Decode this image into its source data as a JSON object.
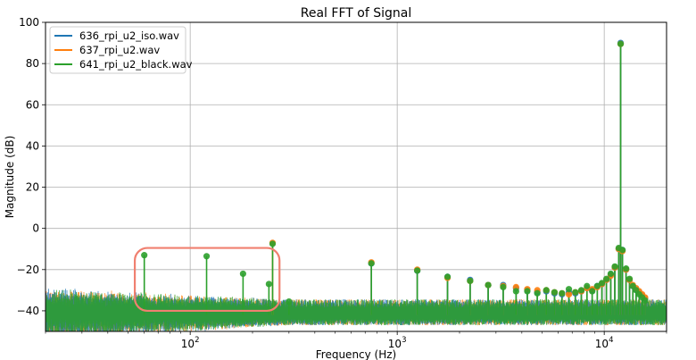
{
  "chart_data": {
    "type": "line",
    "title": "Real FFT of Signal",
    "xlabel": "Frequency (Hz)",
    "ylabel": "Magnitude (dB)",
    "xscale": "log",
    "xlim": [
      20,
      20000
    ],
    "ylim": [
      -50,
      100
    ],
    "xticks": [
      {
        "value": 100,
        "base": "10",
        "exp": "2"
      },
      {
        "value": 1000,
        "base": "10",
        "exp": "3"
      },
      {
        "value": 10000,
        "base": "10",
        "exp": "4"
      }
    ],
    "yticks": [
      -40,
      -20,
      0,
      20,
      40,
      60,
      80,
      100
    ],
    "grid": true,
    "legend_position": "top-left",
    "noise_floor": {
      "mean": -40,
      "spread": 4,
      "low_freq_extra": 6
    },
    "series": [
      {
        "name": "636_rpi_u2_iso.wav",
        "color": "#1f77b4",
        "peaks": [
          {
            "x": 750,
            "y": -17
          },
          {
            "x": 1250,
            "y": -20.5
          },
          {
            "x": 1750,
            "y": -23.5
          },
          {
            "x": 2250,
            "y": -25
          },
          {
            "x": 2750,
            "y": -27.5
          },
          {
            "x": 3250,
            "y": -27.5
          },
          {
            "x": 3750,
            "y": -29
          },
          {
            "x": 4250,
            "y": -30
          },
          {
            "x": 4750,
            "y": -31
          },
          {
            "x": 5250,
            "y": -30.5
          },
          {
            "x": 5750,
            "y": -31.5
          },
          {
            "x": 6250,
            "y": -32
          },
          {
            "x": 6750,
            "y": -31
          },
          {
            "x": 7250,
            "y": -31.5
          },
          {
            "x": 7750,
            "y": -30.5
          },
          {
            "x": 8250,
            "y": -29
          },
          {
            "x": 8750,
            "y": -30
          },
          {
            "x": 9250,
            "y": -28
          },
          {
            "x": 9750,
            "y": -27
          },
          {
            "x": 10250,
            "y": -25
          },
          {
            "x": 10750,
            "y": -22.5
          },
          {
            "x": 11250,
            "y": -19
          },
          {
            "x": 11750,
            "y": -10
          },
          {
            "x": 12000,
            "y": 90
          },
          {
            "x": 12250,
            "y": -10.5
          },
          {
            "x": 12750,
            "y": -20
          },
          {
            "x": 13250,
            "y": -25
          },
          {
            "x": 13750,
            "y": -28
          },
          {
            "x": 14250,
            "y": -29.5
          },
          {
            "x": 14750,
            "y": -31
          },
          {
            "x": 15250,
            "y": -32.5
          },
          {
            "x": 15750,
            "y": -34
          }
        ]
      },
      {
        "name": "637_rpi_u2.wav",
        "color": "#ff7f0e",
        "peaks": [
          {
            "x": 250,
            "y": -7
          },
          {
            "x": 750,
            "y": -16.5
          },
          {
            "x": 1250,
            "y": -20
          },
          {
            "x": 1750,
            "y": -24
          },
          {
            "x": 2250,
            "y": -25.5
          },
          {
            "x": 2750,
            "y": -27.5
          },
          {
            "x": 3250,
            "y": -28
          },
          {
            "x": 3750,
            "y": -28.5
          },
          {
            "x": 4250,
            "y": -29.5
          },
          {
            "x": 4750,
            "y": -30
          },
          {
            "x": 5250,
            "y": -30
          },
          {
            "x": 5750,
            "y": -31
          },
          {
            "x": 6250,
            "y": -31.5
          },
          {
            "x": 6750,
            "y": -32
          },
          {
            "x": 7250,
            "y": -31
          },
          {
            "x": 7750,
            "y": -30.5
          },
          {
            "x": 8250,
            "y": -29
          },
          {
            "x": 8750,
            "y": -29.5
          },
          {
            "x": 9250,
            "y": -28.5
          },
          {
            "x": 9750,
            "y": -27
          },
          {
            "x": 10250,
            "y": -25
          },
          {
            "x": 10750,
            "y": -23
          },
          {
            "x": 11250,
            "y": -19
          },
          {
            "x": 11750,
            "y": -10
          },
          {
            "x": 12000,
            "y": 89.5
          },
          {
            "x": 12250,
            "y": -11
          },
          {
            "x": 12750,
            "y": -20
          },
          {
            "x": 13250,
            "y": -25
          },
          {
            "x": 13750,
            "y": -27.5
          },
          {
            "x": 14250,
            "y": -29
          },
          {
            "x": 14750,
            "y": -30.5
          },
          {
            "x": 15250,
            "y": -32
          },
          {
            "x": 15750,
            "y": -33.5
          }
        ]
      },
      {
        "name": "641_rpi_u2_black.wav",
        "color": "#2ca02c",
        "peaks": [
          {
            "x": 60,
            "y": -13
          },
          {
            "x": 120,
            "y": -13.5
          },
          {
            "x": 180,
            "y": -22
          },
          {
            "x": 240,
            "y": -27
          },
          {
            "x": 250,
            "y": -7.5
          },
          {
            "x": 300,
            "y": -35.5
          },
          {
            "x": 750,
            "y": -17
          },
          {
            "x": 1250,
            "y": -20.5
          },
          {
            "x": 1750,
            "y": -23.5
          },
          {
            "x": 2250,
            "y": -25.5
          },
          {
            "x": 2750,
            "y": -27.5
          },
          {
            "x": 3250,
            "y": -28.5
          },
          {
            "x": 3750,
            "y": -30.5
          },
          {
            "x": 4250,
            "y": -30.5
          },
          {
            "x": 4750,
            "y": -31.5
          },
          {
            "x": 5250,
            "y": -30
          },
          {
            "x": 5750,
            "y": -31
          },
          {
            "x": 6250,
            "y": -31.5
          },
          {
            "x": 6750,
            "y": -29.5
          },
          {
            "x": 7250,
            "y": -31
          },
          {
            "x": 7750,
            "y": -30
          },
          {
            "x": 8250,
            "y": -28
          },
          {
            "x": 8750,
            "y": -30.5
          },
          {
            "x": 9250,
            "y": -28
          },
          {
            "x": 9750,
            "y": -26.5
          },
          {
            "x": 10250,
            "y": -24.5
          },
          {
            "x": 10750,
            "y": -22
          },
          {
            "x": 11250,
            "y": -18.5
          },
          {
            "x": 11750,
            "y": -9.5
          },
          {
            "x": 12000,
            "y": 89.5
          },
          {
            "x": 12250,
            "y": -10.5
          },
          {
            "x": 12750,
            "y": -19.5
          },
          {
            "x": 13250,
            "y": -24.5
          },
          {
            "x": 13750,
            "y": -28
          },
          {
            "x": 14250,
            "y": -30
          },
          {
            "x": 14750,
            "y": -32
          },
          {
            "x": 15250,
            "y": -33.5
          },
          {
            "x": 15750,
            "y": -35
          }
        ]
      }
    ],
    "annotation": {
      "type": "rounded-rect",
      "color": "#f08070",
      "x_range": [
        54,
        270
      ],
      "y_range": [
        -40,
        -9.5
      ]
    }
  }
}
